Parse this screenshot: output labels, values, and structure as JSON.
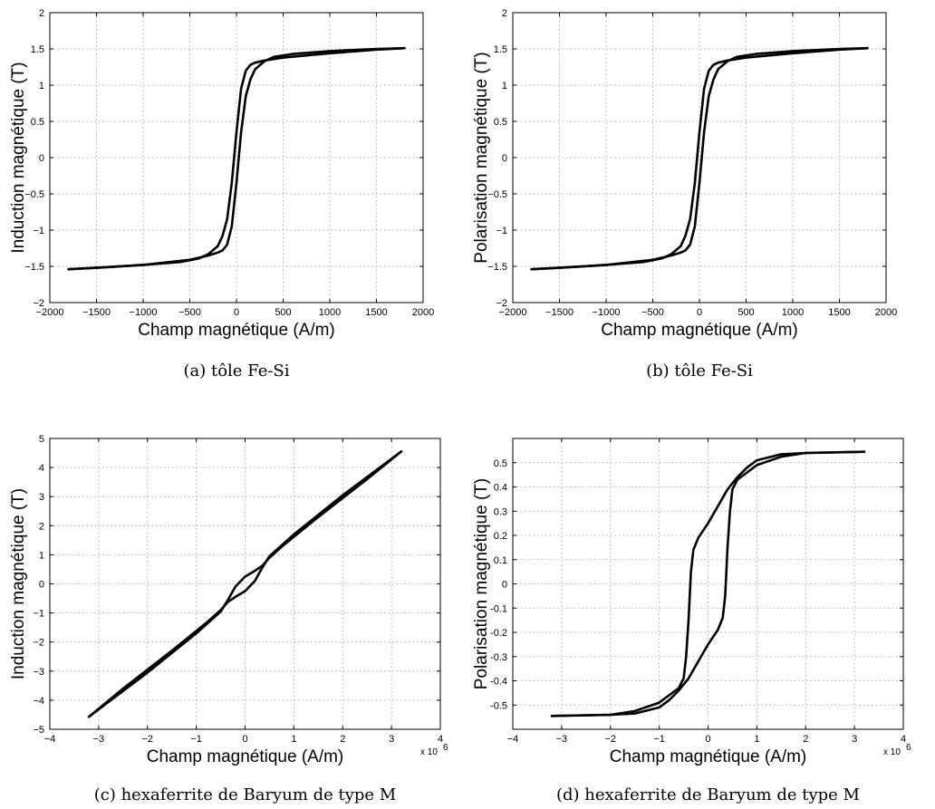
{
  "chart_data": [
    {
      "type": "line",
      "caption": "(a) tôle Fe-Si",
      "xlabel": "Champ magnétique (A/m)",
      "ylabel": "Induction magnétique (T)",
      "xlim": [
        -2000,
        2000
      ],
      "ylim": [
        -2,
        2
      ],
      "xticks": [
        -2000,
        -1500,
        -1000,
        -500,
        0,
        500,
        1000,
        1500,
        2000
      ],
      "xticklabels": [
        "−2000",
        "−1500",
        "−1000",
        "−500",
        "0",
        "500",
        "1000",
        "1500",
        "2000"
      ],
      "yticks": [
        -2,
        -1.5,
        -1,
        -0.5,
        0,
        0.5,
        1,
        1.5,
        2
      ],
      "yticklabels": [
        "−2",
        "−1.5",
        "−1",
        "−0.5",
        "0",
        "0.5",
        "1",
        "1.5",
        "2"
      ],
      "x_exponent": "",
      "grid": true,
      "series": [
        {
          "x": [
            -1800,
            -1500,
            -1000,
            -600,
            -400,
            -300,
            -200,
            -150,
            -100,
            -50,
            0,
            50,
            100,
            150,
            200,
            300,
            500,
            1000,
            1500,
            1800
          ],
          "y": [
            -1.54,
            -1.52,
            -1.48,
            -1.44,
            -1.39,
            -1.33,
            -1.22,
            -1.08,
            -0.85,
            -0.35,
            0.35,
            0.95,
            1.2,
            1.28,
            1.31,
            1.34,
            1.38,
            1.44,
            1.49,
            1.51
          ]
        },
        {
          "x": [
            1800,
            1500,
            1000,
            600,
            400,
            300,
            200,
            150,
            100,
            50,
            0,
            -50,
            -100,
            -150,
            -200,
            -300,
            -500,
            -1000,
            -1500,
            -1800
          ],
          "y": [
            1.51,
            1.5,
            1.47,
            1.43,
            1.39,
            1.33,
            1.22,
            1.08,
            0.85,
            0.35,
            -0.35,
            -0.95,
            -1.2,
            -1.28,
            -1.31,
            -1.35,
            -1.41,
            -1.48,
            -1.52,
            -1.54
          ]
        }
      ]
    },
    {
      "type": "line",
      "caption": "(b) tôle Fe-Si",
      "xlabel": "Champ magnétique (A/m)",
      "ylabel": "Polarisation magnétique (T)",
      "xlim": [
        -2000,
        2000
      ],
      "ylim": [
        -2,
        2
      ],
      "xticks": [
        -2000,
        -1500,
        -1000,
        -500,
        0,
        500,
        1000,
        1500,
        2000
      ],
      "xticklabels": [
        "−2000",
        "−1500",
        "−1000",
        "−500",
        "0",
        "500",
        "1000",
        "1500",
        "2000"
      ],
      "yticks": [
        -2,
        -1.5,
        -1,
        -0.5,
        0,
        0.5,
        1,
        1.5,
        2
      ],
      "yticklabels": [
        "−2",
        "−1.5",
        "−1",
        "−0.5",
        "0",
        "0.5",
        "1",
        "1.5",
        "2"
      ],
      "x_exponent": "",
      "grid": true,
      "series": [
        {
          "x": [
            -1800,
            -1500,
            -1000,
            -600,
            -400,
            -300,
            -200,
            -150,
            -100,
            -50,
            0,
            50,
            100,
            150,
            200,
            300,
            500,
            1000,
            1500,
            1800
          ],
          "y": [
            -1.54,
            -1.52,
            -1.48,
            -1.44,
            -1.39,
            -1.33,
            -1.22,
            -1.08,
            -0.85,
            -0.35,
            0.35,
            0.95,
            1.2,
            1.28,
            1.31,
            1.34,
            1.38,
            1.44,
            1.49,
            1.51
          ]
        },
        {
          "x": [
            1800,
            1500,
            1000,
            600,
            400,
            300,
            200,
            150,
            100,
            50,
            0,
            -50,
            -100,
            -150,
            -200,
            -300,
            -500,
            -1000,
            -1500,
            -1800
          ],
          "y": [
            1.51,
            1.5,
            1.47,
            1.43,
            1.39,
            1.33,
            1.22,
            1.08,
            0.85,
            0.35,
            -0.35,
            -0.95,
            -1.2,
            -1.28,
            -1.31,
            -1.35,
            -1.41,
            -1.48,
            -1.52,
            -1.54
          ]
        }
      ]
    },
    {
      "type": "line",
      "caption": "(c) hexaferrite de Baryum de type M",
      "xlabel": "Champ magnétique (A/m)",
      "ylabel": "Induction magnétique (T)",
      "xlim": [
        -4,
        4
      ],
      "ylim": [
        -5,
        5
      ],
      "xticks": [
        -4,
        -3,
        -2,
        -1,
        0,
        1,
        2,
        3,
        4
      ],
      "xticklabels": [
        "−4",
        "−3",
        "−2",
        "−1",
        "0",
        "1",
        "2",
        "3",
        "4"
      ],
      "yticks": [
        -5,
        -4,
        -3,
        -2,
        -1,
        0,
        1,
        2,
        3,
        4,
        5
      ],
      "yticklabels": [
        "−5",
        "−4",
        "−3",
        "−2",
        "−1",
        "0",
        "1",
        "2",
        "3",
        "4",
        "5"
      ],
      "x_exponent": "x 10",
      "x_exponent_power": "6",
      "grid": true,
      "series": [
        {
          "x": [
            -3.2,
            -2.5,
            -1.5,
            -0.8,
            -0.5,
            -0.35,
            -0.2,
            0,
            0.2,
            0.35,
            0.5,
            0.7,
            1,
            2,
            3.2
          ],
          "y": [
            -4.57,
            -3.6,
            -2.3,
            -1.35,
            -0.9,
            -0.62,
            -0.45,
            -0.25,
            0.1,
            0.55,
            0.95,
            1.25,
            1.7,
            3.05,
            4.55
          ]
        },
        {
          "x": [
            3.2,
            2.5,
            1.5,
            0.8,
            0.5,
            0.35,
            0.2,
            0,
            -0.2,
            -0.35,
            -0.5,
            -0.7,
            -1,
            -2,
            -3.2
          ],
          "y": [
            4.55,
            3.6,
            2.3,
            1.35,
            0.9,
            0.62,
            0.45,
            0.25,
            -0.1,
            -0.55,
            -0.95,
            -1.25,
            -1.7,
            -3.05,
            -4.57
          ]
        }
      ]
    },
    {
      "type": "line",
      "caption": "(d) hexaferrite de Baryum de type M",
      "xlabel": "Champ magnétique (A/m)",
      "ylabel": "Polarisation magnétique (T)",
      "xlim": [
        -4,
        4
      ],
      "ylim": [
        -0.6,
        0.6
      ],
      "xticks": [
        -4,
        -3,
        -2,
        -1,
        0,
        1,
        2,
        3,
        4
      ],
      "xticklabels": [
        "−4",
        "−3",
        "−2",
        "−1",
        "0",
        "1",
        "2",
        "3",
        "4"
      ],
      "yticks": [
        -0.5,
        -0.4,
        -0.3,
        -0.2,
        -0.1,
        0,
        0.1,
        0.2,
        0.3,
        0.4,
        0.5
      ],
      "yticklabels": [
        "-0.5",
        "-0.4",
        "-0.3",
        "-0.2",
        "-0.1",
        "0",
        "0.1",
        "0.2",
        "0.3",
        "0.4",
        "0.5"
      ],
      "x_exponent": "x 10",
      "x_exponent_power": "6",
      "grid": true,
      "series": [
        {
          "x": [
            -3.2,
            -2,
            -1.5,
            -1,
            -0.8,
            -0.6,
            -0.4,
            -0.2,
            0,
            0.2,
            0.3,
            0.35,
            0.4,
            0.45,
            0.5,
            0.6,
            0.8,
            1,
            1.5,
            2,
            3.2
          ],
          "y": [
            -0.545,
            -0.54,
            -0.535,
            -0.51,
            -0.48,
            -0.44,
            -0.39,
            -0.32,
            -0.25,
            -0.19,
            -0.14,
            -0.05,
            0.15,
            0.3,
            0.39,
            0.43,
            0.46,
            0.49,
            0.525,
            0.54,
            0.545
          ]
        },
        {
          "x": [
            3.2,
            2,
            1.5,
            1,
            0.8,
            0.6,
            0.4,
            0.2,
            0,
            -0.2,
            -0.3,
            -0.35,
            -0.4,
            -0.45,
            -0.5,
            -0.6,
            -0.8,
            -1,
            -1.5,
            -2,
            -3.2
          ],
          "y": [
            0.545,
            0.54,
            0.535,
            0.51,
            0.48,
            0.44,
            0.39,
            0.32,
            0.25,
            0.19,
            0.14,
            0.05,
            -0.15,
            -0.3,
            -0.39,
            -0.43,
            -0.46,
            -0.49,
            -0.525,
            -0.54,
            -0.545
          ]
        }
      ]
    }
  ]
}
